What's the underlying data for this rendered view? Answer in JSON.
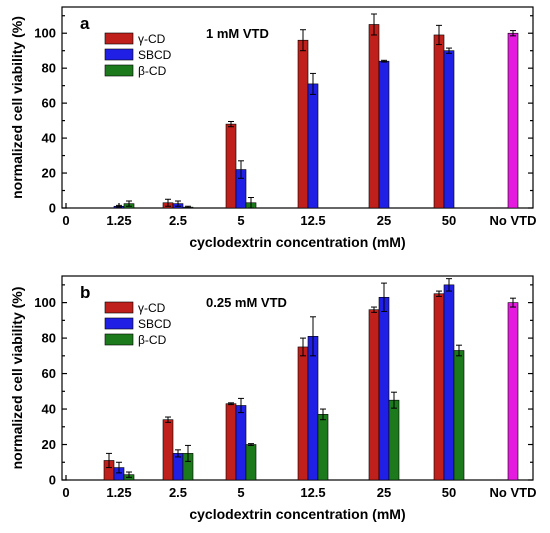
{
  "colors": {
    "gamma": "#c0201b",
    "sbcd": "#1f1fe6",
    "beta": "#1c7a1c",
    "novtd": "#e51ce0"
  },
  "chart_data": [
    {
      "type": "bar",
      "panel_label": "a",
      "annotation": "1 mM VTD",
      "categories": [
        "1.25",
        "2.5",
        "5",
        "12.5",
        "25",
        "50",
        "No VTD"
      ],
      "x_tick_labels": [
        "0",
        "1.25",
        "2.5",
        "5",
        "12.5",
        "25",
        "50",
        "No VTD"
      ],
      "xlabel": "cyclodextrin concentration (mM)",
      "ylabel": "normalized cell viability (%)",
      "ylim": [
        0,
        115
      ],
      "yticks": [
        0,
        20,
        40,
        60,
        80,
        100
      ],
      "legend_position": "top-left",
      "series": [
        {
          "name": "γ-CD",
          "color_key": "gamma",
          "values": [
            0,
            3,
            48,
            96,
            105,
            99,
            null
          ],
          "errors": [
            0,
            2,
            1.5,
            6,
            6,
            5.5,
            null
          ]
        },
        {
          "name": "SBCD",
          "color_key": "sbcd",
          "values": [
            1,
            2.5,
            22,
            71,
            84,
            90,
            null
          ],
          "errors": [
            0.5,
            1.5,
            5,
            6,
            0.5,
            1.5,
            null
          ]
        },
        {
          "name": "β-CD",
          "color_key": "beta",
          "values": [
            2.5,
            0.5,
            3,
            null,
            null,
            null,
            null
          ],
          "errors": [
            1.5,
            0.5,
            3,
            null,
            null,
            null,
            null
          ]
        }
      ],
      "control": {
        "category": "No VTD",
        "value": 100,
        "error": 1.5,
        "color_key": "novtd"
      }
    },
    {
      "type": "bar",
      "panel_label": "b",
      "annotation": "0.25 mM VTD",
      "categories": [
        "1.25",
        "2.5",
        "5",
        "12.5",
        "25",
        "50",
        "No VTD"
      ],
      "x_tick_labels": [
        "0",
        "1.25",
        "2.5",
        "5",
        "12.5",
        "25",
        "50",
        "No VTD"
      ],
      "xlabel": "cyclodextrin concentration (mM)",
      "ylabel": "normalized cell viability (%)",
      "ylim": [
        0,
        115
      ],
      "yticks": [
        0,
        20,
        40,
        60,
        80,
        100
      ],
      "legend_position": "top-left",
      "series": [
        {
          "name": "γ-CD",
          "color_key": "gamma",
          "values": [
            11,
            34,
            43,
            75,
            96,
            105,
            null
          ],
          "errors": [
            4,
            1.5,
            0.5,
            5,
            1.5,
            1.5,
            null
          ]
        },
        {
          "name": "SBCD",
          "color_key": "sbcd",
          "values": [
            7,
            15,
            42,
            81,
            103,
            110,
            null
          ],
          "errors": [
            3,
            2,
            4,
            11,
            8,
            3.5,
            null
          ]
        },
        {
          "name": "β-CD",
          "color_key": "beta",
          "values": [
            3,
            15,
            20,
            37,
            45,
            73,
            null
          ],
          "errors": [
            1.5,
            4.5,
            0.5,
            3,
            4.5,
            3,
            null
          ]
        }
      ],
      "control": {
        "category": "No VTD",
        "value": 100,
        "error": 2.5,
        "color_key": "novtd"
      }
    }
  ]
}
